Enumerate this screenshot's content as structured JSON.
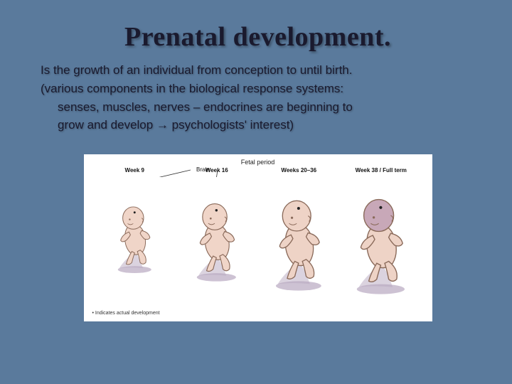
{
  "slide": {
    "title": "Prenatal development.",
    "line1": "Is the growth of an individual from conception to until birth.",
    "line2": "(various components in the biological response systems:",
    "line3": "senses, muscles, nerves – endocrines are beginning to",
    "line4": "grow and develop → psychologists' interest)"
  },
  "figure": {
    "header": "Fetal period",
    "brain_label": "Brain",
    "footnote": "• Indicates actual development",
    "stages": [
      {
        "label": "Week 9",
        "scale": 0.7,
        "head_color": "#f0d5c8",
        "body_color": "#f0d5c8"
      },
      {
        "label": "Week 16",
        "scale": 0.82,
        "head_color": "#f0d5c8",
        "body_color": "#f0d5c8"
      },
      {
        "label": "Weeks 20–36",
        "scale": 0.95,
        "head_color": "#eed3c6",
        "body_color": "#eed3c6"
      },
      {
        "label": "Week 38 / Full term",
        "scale": 1.0,
        "head_color": "#c8a8b8",
        "body_color": "#eed3c6"
      }
    ]
  },
  "style": {
    "background": "#5a7a9c",
    "title_fontsize": 38,
    "body_fontsize": 17,
    "figure_bg": "#ffffff",
    "fetus_outline": "#8a6a5a",
    "shadow_color": "#b8a8c0"
  }
}
